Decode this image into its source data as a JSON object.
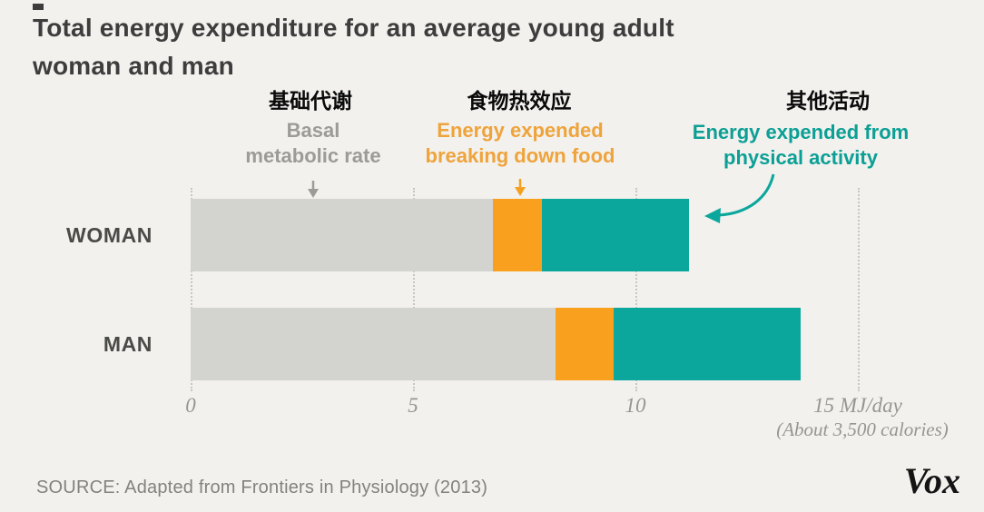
{
  "title": {
    "line1": "Total energy expenditure for an average young adult",
    "line2": "woman and man"
  },
  "annotations_cn": {
    "basal": "基础代谢",
    "food": "食物热效应",
    "activity": "其他活动"
  },
  "legend": {
    "basal": {
      "line1": "Basal",
      "line2": "metabolic rate",
      "color": "#9c9b98"
    },
    "food": {
      "line1": "Energy expended",
      "line2": "breaking down food",
      "color": "#efa33b"
    },
    "activity": {
      "line1": "Energy expended from",
      "line2": "physical activity",
      "color": "#0c9f95"
    }
  },
  "chart_data": {
    "type": "bar",
    "orientation": "horizontal",
    "stacked": true,
    "title": "Total energy expenditure for an average young adult woman and man",
    "categories": [
      "WOMAN",
      "MAN"
    ],
    "series": [
      {
        "name": "Basal metabolic rate",
        "color": "#d3d3d0",
        "values": [
          6.8,
          8.2
        ]
      },
      {
        "name": "Energy expended breaking down food",
        "color": "#f9a01f",
        "values": [
          1.1,
          1.3
        ]
      },
      {
        "name": "Energy expended from physical activity",
        "color": "#0ba79c",
        "values": [
          3.3,
          4.2
        ]
      }
    ],
    "totals": [
      11.2,
      13.7
    ],
    "x_ticks": [
      "0",
      "5",
      "10",
      "15 MJ/day"
    ],
    "x_tick_values": [
      0,
      5,
      10,
      15
    ],
    "x_axis_note": "(About 3,500 calories)",
    "xlabel": "MJ/day",
    "xlim": [
      0,
      15
    ],
    "grid": "dotted-vertical",
    "legend_position": "top"
  },
  "source": "SOURCE: Adapted from Frontiers in Physiology (2013)",
  "logo": "Vox",
  "colors": {
    "background": "#f2f1ee",
    "title_text": "#3d3d3d",
    "axis_text": "#97958e",
    "gridline": "#c7c6c2"
  }
}
